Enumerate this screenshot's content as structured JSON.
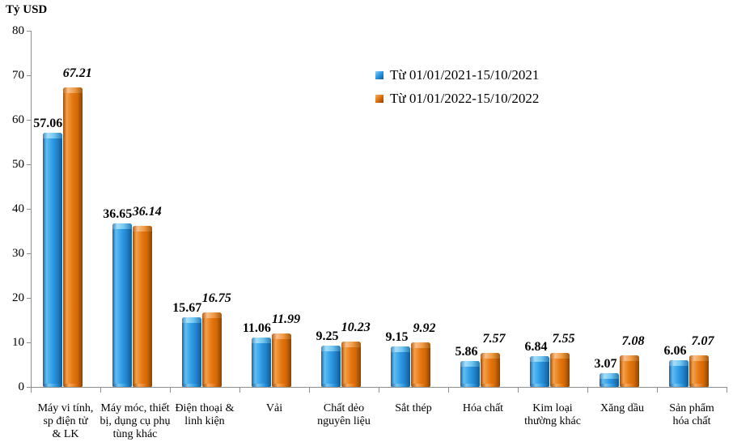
{
  "title": "Tỷ USD",
  "colors": {
    "series_2021": "#2E9BE6",
    "series_2022": "#E6750E",
    "axis": "#8E8E8E",
    "text": "#000000"
  },
  "chart_data": {
    "type": "bar",
    "title": "",
    "ylabel": "Tỷ USD",
    "xlabel": "",
    "ylim": [
      0,
      80
    ],
    "ytick_step": 10,
    "grid": false,
    "legend_position": "upper center-right, inside plot",
    "value_labels": true,
    "categories": [
      "Máy vi tính,\nsp điện tử\n& LK",
      "Máy móc, thiết\nbị, dụng cụ phụ\ntùng khác",
      "Điện thoại &\nlinh kiện",
      "Vải",
      "Chất dẻo\nnguyên liệu",
      "Sắt thép",
      "Hóa chất",
      "Kim loại\nthường khác",
      "Xăng dầu",
      "Sản phẩm\nhóa chất"
    ],
    "series": [
      {
        "name": "Từ 01/01/2021-15/10/2021",
        "color": "#2E9BE6",
        "values": [
          57.06,
          36.65,
          15.67,
          11.06,
          9.25,
          9.15,
          5.86,
          6.84,
          3.07,
          6.06
        ]
      },
      {
        "name": "Từ 01/01/2022-15/10/2022",
        "color": "#E6750E",
        "values": [
          67.21,
          36.14,
          16.75,
          11.99,
          10.23,
          9.92,
          7.57,
          7.55,
          7.08,
          7.07
        ]
      }
    ]
  }
}
